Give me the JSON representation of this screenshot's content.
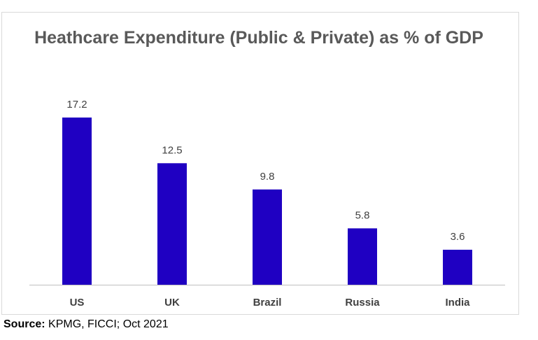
{
  "chart_data": {
    "type": "bar",
    "title": "Heathcare Expenditure (Public & Private) as % of GDP",
    "categories": [
      "US",
      "UK",
      "Brazil",
      "Russia",
      "India"
    ],
    "values": [
      17.2,
      12.5,
      9.8,
      5.8,
      3.6
    ],
    "data_labels": [
      "17.2",
      "12.5",
      "9.8",
      "5.8",
      "3.6"
    ],
    "bar_color": "#1f00c2",
    "xlabel": "",
    "ylabel": "",
    "ylim": [
      0,
      17.2
    ],
    "grid": false,
    "legend": "none",
    "y_axis_visible": false
  },
  "source": {
    "label": "Source:",
    "text": " KPMG, FICCI; Oct 2021"
  }
}
